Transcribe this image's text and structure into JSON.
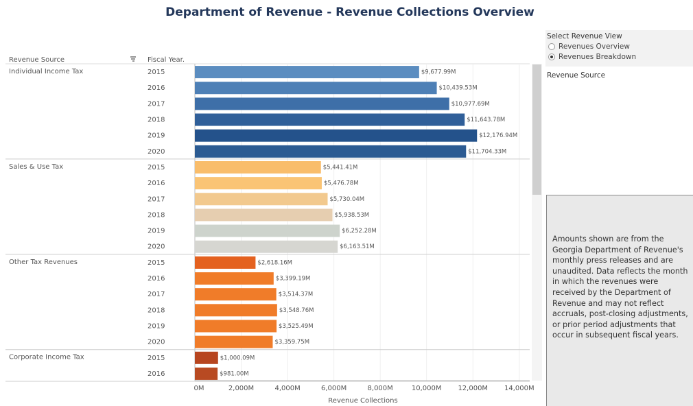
{
  "chart_data": {
    "type": "bar",
    "orientation": "horizontal",
    "title": "Department of Revenue - Revenue Collections Overview",
    "row_header": "Revenue Source",
    "column_header": "Fiscal Year.",
    "xlabel": "Revenue Collections",
    "xlim": [
      0,
      14450
    ],
    "xticks": [
      {
        "value": 0,
        "label": "0M"
      },
      {
        "value": 2000,
        "label": "2,000M"
      },
      {
        "value": 4000,
        "label": "4,000M"
      },
      {
        "value": 6000,
        "label": "6,000M"
      },
      {
        "value": 8000,
        "label": "8,000M"
      },
      {
        "value": 10000,
        "label": "10,000M"
      },
      {
        "value": 12000,
        "label": "12,000M"
      },
      {
        "value": 14000,
        "label": "14,000M"
      }
    ],
    "grid": true,
    "series": [
      {
        "name": "Individual Income Tax",
        "categories": [
          "2015",
          "2016",
          "2017",
          "2018",
          "2019",
          "2020"
        ],
        "values": [
          9677.99,
          10439.53,
          10977.69,
          11643.78,
          12176.94,
          11704.33
        ],
        "value_labels": [
          "$9,677.99M",
          "$10,439.53M",
          "$10,977.69M",
          "$11,643.78M",
          "$12,176.94M",
          "$11,704.33M"
        ],
        "colors": [
          "#5b8dc0",
          "#4e80b6",
          "#3e6fa8",
          "#305f99",
          "#24528b",
          "#2c5b92"
        ]
      },
      {
        "name": "Sales & Use Tax",
        "categories": [
          "2015",
          "2016",
          "2017",
          "2018",
          "2019",
          "2020"
        ],
        "values": [
          5441.41,
          5476.78,
          5730.04,
          5938.53,
          6252.28,
          6163.51
        ],
        "value_labels": [
          "$5,441.41M",
          "$5,476.78M",
          "$5,730.04M",
          "$5,938.53M",
          "$6,252.28M",
          "$6,163.51M"
        ],
        "colors": [
          "#f9bd6b",
          "#fac475",
          "#f2c98e",
          "#e6ceb0",
          "#cdd3cc",
          "#d6d6d1"
        ]
      },
      {
        "name": "Other Tax Revenues",
        "categories": [
          "2015",
          "2016",
          "2017",
          "2018",
          "2019",
          "2020"
        ],
        "values": [
          2618.16,
          3399.19,
          3514.37,
          3548.76,
          3525.49,
          3359.75
        ],
        "value_labels": [
          "$2,618.16M",
          "$3,399.19M",
          "$3,514.37M",
          "$3,548.76M",
          "$3,525.49M",
          "$3,359.75M"
        ],
        "colors": [
          "#e4611f",
          "#f07c29",
          "#f07c29",
          "#f07c29",
          "#f07c29",
          "#f07c29"
        ]
      },
      {
        "name": "Corporate Income Tax",
        "categories": [
          "2015",
          "2016"
        ],
        "values": [
          1000.09,
          981.0
        ],
        "value_labels": [
          "$1,000.09M",
          "$981.00M"
        ],
        "colors": [
          "#b7451f",
          "#b84a22"
        ]
      }
    ]
  },
  "panel": {
    "title": "Select Revenue View",
    "options": [
      "Revenues Overview",
      "Revenues Breakdown"
    ],
    "selected": 1,
    "filter_title": "Revenue Source",
    "note": "Amounts shown are from the Georgia Department of Revenue's monthly press releases and are unaudited. Data reflects the month in which the revenues were received by the Department of Revenue and may not reflect accruals, post-closing adjustments, or prior period adjustments that occur in subsequent fiscal years."
  }
}
